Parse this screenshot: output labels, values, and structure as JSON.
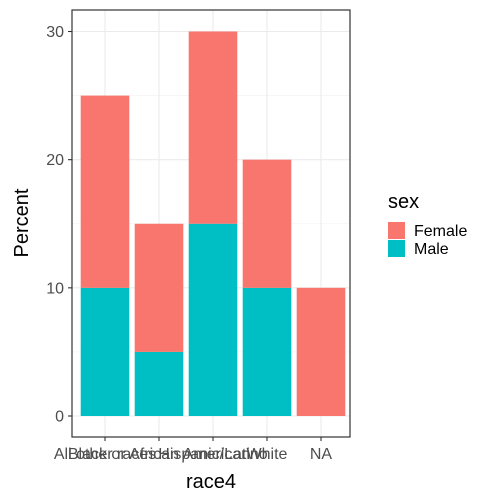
{
  "chart_data": {
    "type": "bar",
    "stacked": true,
    "categories": [
      "All other races",
      "Black or African American",
      "Hispanic/Latino",
      "White",
      "NA"
    ],
    "series": [
      {
        "name": "Female",
        "values": [
          15,
          10,
          15,
          10,
          10
        ]
      },
      {
        "name": "Male",
        "values": [
          10,
          5,
          15,
          10,
          0
        ]
      }
    ],
    "xlabel": "race4",
    "ylabel": "Percent",
    "ylim": [
      0,
      30
    ],
    "yticks": [
      0,
      10,
      20,
      30
    ],
    "grid": true,
    "legend": {
      "title": "sex",
      "position": "right"
    },
    "colors": {
      "Female": "#F8766D",
      "Male": "#00BFC4"
    }
  }
}
